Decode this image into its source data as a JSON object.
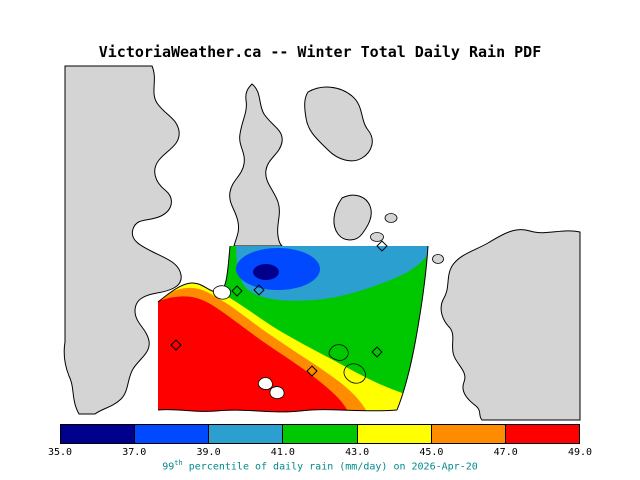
{
  "title": "VictoriaWeather.ca -- Winter Total Daily Rain PDF",
  "map": {
    "land_color": "#d4d4d4",
    "water_color": "#ffffff",
    "coastline_color": "#000000"
  },
  "colorbar": {
    "tick_labels": [
      "35.0",
      "37.0",
      "39.0",
      "41.0",
      "43.0",
      "45.0",
      "47.0",
      "49.0"
    ],
    "colors": [
      "#00008c",
      "#0049ff",
      "#2a9fd0",
      "#00c800",
      "#ffff00",
      "#ff8c00",
      "#ff0000"
    ]
  },
  "caption": {
    "base": "99",
    "superscript": "th",
    "rest": " percentile of daily rain (mm/day) on 2026-Apr-20",
    "color": "#008b8b"
  },
  "chart_data": {
    "type": "heatmap",
    "title": "VictoriaWeather.ca -- Winter Total Daily Rain PDF",
    "variable": "99th percentile of daily rain",
    "units": "mm/day",
    "date": "2026-Apr-20",
    "levels": [
      35.0,
      37.0,
      39.0,
      41.0,
      43.0,
      45.0,
      47.0,
      49.0
    ],
    "contour_interval": 2.0,
    "palette": [
      "#00008c",
      "#0049ff",
      "#2a9fd0",
      "#00c800",
      "#ffff00",
      "#ff8c00",
      "#ff0000"
    ],
    "value_range": [
      35.0,
      49.0
    ],
    "legend_position": "bottom",
    "notes": "Filled contour field over the Greater Victoria region: minimum (dark blue, ~35 mm/day) northeast near Saanich, increasing southwest through cyan, green, yellow and orange to a red maximum (>=49 mm/day) in the southwest; diamond symbols mark station locations."
  }
}
